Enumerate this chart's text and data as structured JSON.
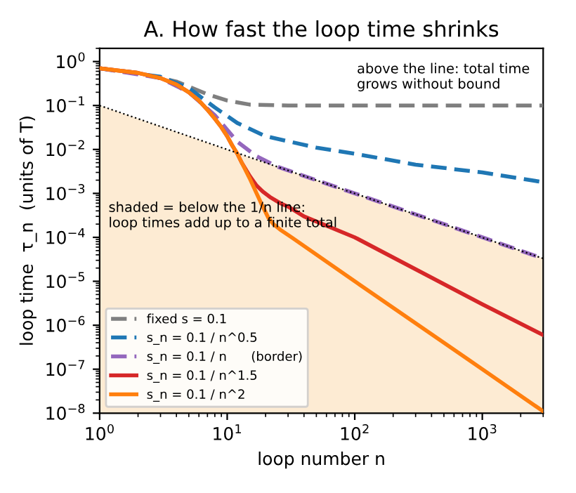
{
  "chart_data": {
    "type": "line",
    "title": "A. How fast the loop time shrinks",
    "xlabel": "loop number n",
    "ylabel": "loop time  τ_n  (units of T)",
    "log": "xy",
    "xlim": [
      1,
      3000
    ],
    "ylim": [
      1e-08,
      2
    ],
    "xticks": [
      {
        "value": 1,
        "label": "10$^{0}$"
      },
      {
        "value": 10,
        "label": "10$^{1}$"
      },
      {
        "value": 100,
        "label": "10$^{2}$"
      },
      {
        "value": 1000,
        "label": "10$^{3}$"
      }
    ],
    "yticks": [
      {
        "value": 1e-08,
        "label": "10$^{−8}$"
      },
      {
        "value": 1e-07,
        "label": "10$^{−7}$"
      },
      {
        "value": 1e-06,
        "label": "10$^{−6}$"
      },
      {
        "value": 1e-05,
        "label": "10$^{−5}$"
      },
      {
        "value": 0.0001,
        "label": "10$^{−4}$"
      },
      {
        "value": 0.001,
        "label": "10$^{−3}$"
      },
      {
        "value": 0.01,
        "label": "10$^{−2}$"
      },
      {
        "value": 0.1,
        "label": "10$^{−1}$"
      },
      {
        "value": 1,
        "label": "10$^{0}$"
      }
    ],
    "grid": false,
    "legend": "bottom left",
    "marker": "none",
    "annotations": [
      "above the line: total time\ngrows without bound",
      "shaded = below the 1/n line:\nloop times add up to a finite total"
    ],
    "series": [
      {
        "type": "area",
        "color": "#fdebd3",
        "line_style": "dotted",
        "x": [
          1,
          3000
        ],
        "values": [
          0.1,
          3.3e-05
        ]
      },
      {
        "name": "fixed s = 0.1",
        "color": "#7f7f7f",
        "line_style": "dashed",
        "x": [
          1,
          2,
          4,
          7,
          10,
          15,
          30,
          3000
        ],
        "values": [
          0.7,
          0.55,
          0.35,
          0.18,
          0.13,
          0.105,
          0.1,
          0.1
        ]
      },
      {
        "name": "s_n = 0.1 / n^0.5",
        "color": "#1f77b4",
        "line_style": "dashed",
        "x": [
          1,
          3,
          5,
          8,
          12,
          20,
          50,
          100,
          300,
          1000,
          3000
        ],
        "values": [
          0.7,
          0.45,
          0.25,
          0.09,
          0.04,
          0.02,
          0.011,
          0.008,
          0.0045,
          0.003,
          0.0018
        ]
      },
      {
        "name": "s_n = 0.1 / n      (border)",
        "color": "#9467bd",
        "line_style": "dashed",
        "x": [
          1,
          3,
          5,
          8,
          12,
          17,
          25,
          100,
          1000,
          3000
        ],
        "values": [
          0.7,
          0.42,
          0.2,
          0.06,
          0.015,
          0.007,
          0.004,
          0.001,
          0.0001,
          3.3e-05
        ]
      },
      {
        "name": "s_n = 0.1 / n^1.5",
        "color": "#d62728",
        "line_style": "solid",
        "x": [
          1,
          2,
          3,
          4,
          5,
          6,
          7,
          8,
          9,
          10,
          11,
          12,
          13,
          15,
          17,
          19,
          22,
          26,
          30,
          40,
          100,
          1000,
          3000
        ],
        "values": [
          0.7,
          0.55,
          0.42,
          0.3,
          0.2,
          0.13,
          0.08,
          0.05,
          0.032,
          0.02,
          0.012,
          0.008,
          0.005,
          0.0025,
          0.0015,
          0.0011,
          0.0008,
          0.0006,
          0.0005,
          0.0003,
          0.0001,
          3e-06,
          6e-07
        ]
      },
      {
        "name": "s_n = 0.1 / n^2",
        "color": "#ff7f0e",
        "line_style": "solid",
        "x": [
          1,
          2,
          3,
          4,
          5,
          6,
          7,
          8,
          9,
          10,
          11,
          12,
          13,
          15,
          17,
          19,
          21,
          23,
          26,
          32,
          100,
          1000,
          3000
        ],
        "values": [
          0.7,
          0.55,
          0.42,
          0.3,
          0.2,
          0.13,
          0.08,
          0.05,
          0.032,
          0.02,
          0.012,
          0.008,
          0.005,
          0.0022,
          0.001,
          0.0005,
          0.00028,
          0.0002,
          0.00015,
          0.0001,
          1e-05,
          1e-07,
          1.1e-08
        ]
      }
    ]
  }
}
